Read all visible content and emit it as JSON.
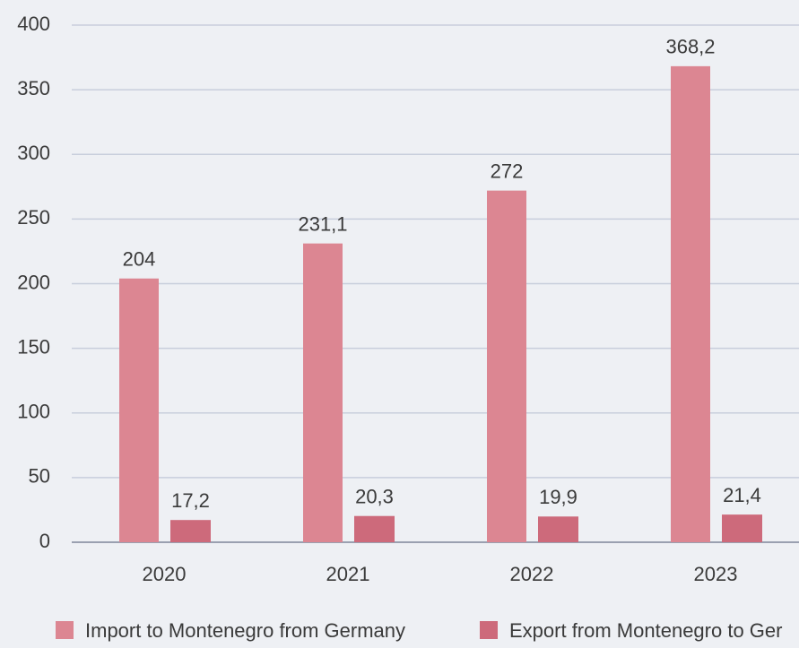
{
  "chart_data": {
    "type": "bar",
    "categories": [
      "2020",
      "2021",
      "2022",
      "2023"
    ],
    "series": [
      {
        "name": "Import to Montenegro from Germany",
        "color": "#dc8692",
        "values": [
          204,
          231.1,
          272,
          368.2
        ],
        "value_labels": [
          "204",
          "231,1",
          "272",
          "368,2"
        ]
      },
      {
        "name": "Export from Montenegro to Ger",
        "color": "#cd6a7b",
        "values": [
          17.2,
          20.3,
          19.9,
          21.4
        ],
        "value_labels": [
          "17,2",
          "20,3",
          "19,9",
          "21,4"
        ]
      }
    ],
    "ylim": [
      0,
      400
    ],
    "yticks": [
      0,
      50,
      100,
      150,
      200,
      250,
      300,
      350,
      400
    ],
    "grid": true
  }
}
